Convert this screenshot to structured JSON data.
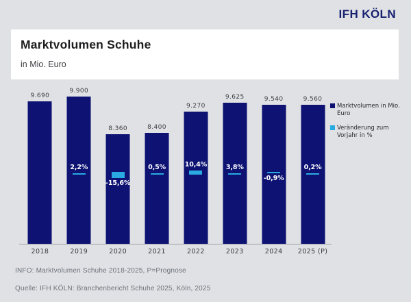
{
  "brand": {
    "logo": "IFH KÖLN",
    "navy": "#16206f"
  },
  "header": {
    "title": "Marktvolumen Schuhe",
    "subtitle": "in Mio. Euro"
  },
  "legend": [
    {
      "label": "Marktvolumen in Mio. Euro",
      "color": "#0d1273"
    },
    {
      "label": "Veränderung zum Vorjahr in %",
      "color": "#29abe2"
    }
  ],
  "footer": {
    "info": "INFO: Marktvolumen Schuhe 2018-2025, P=Prognose",
    "source": "Quelle: IFH KÖLN: Branchenbericht Schuhe 2025, Köln, 2025"
  },
  "chart_data": {
    "type": "bar",
    "title": "Marktvolumen Schuhe",
    "subtitle": "in Mio. Euro",
    "categories": [
      "2018",
      "2019",
      "2020",
      "2021",
      "2022",
      "2023",
      "2024",
      "2025 (P)"
    ],
    "series": [
      {
        "name": "Marktvolumen in Mio. Euro",
        "values": [
          9690,
          9900,
          8360,
          8400,
          9270,
          9625,
          9540,
          9560
        ],
        "labels": [
          "9.690",
          "9.900",
          "8.360",
          "8.400",
          "9.270",
          "9.625",
          "9.540",
          "9.560"
        ],
        "color": "#0d1273"
      },
      {
        "name": "Veränderung zum Vorjahr in %",
        "values": [
          null,
          2.2,
          -15.6,
          0.5,
          10.4,
          3.8,
          -0.9,
          0.2
        ],
        "labels": [
          "",
          "2,2%",
          "-15,6%",
          "0,5%",
          "10,4%",
          "3,8%",
          "-0,9%",
          "0,2%"
        ],
        "color": "#29abe2"
      }
    ],
    "xlabel": "",
    "ylabel": "in Mio. Euro",
    "value_axis_min": 3900,
    "value_axis_max": 10250,
    "grid": false,
    "legend_position": "right"
  }
}
